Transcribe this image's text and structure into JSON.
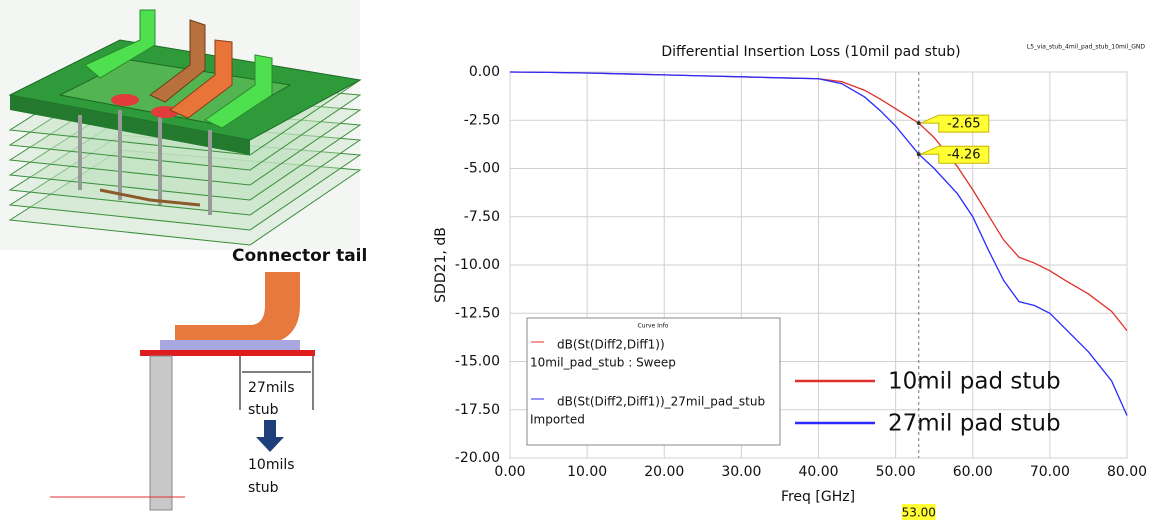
{
  "diagram": {
    "label": "Connector tail",
    "stub_long": [
      "27mils",
      "stub"
    ],
    "stub_short": [
      "10mils",
      "stub"
    ]
  },
  "chart_data": {
    "type": "line",
    "title": "Differential Insertion Loss (10mil pad stub)",
    "subtitle": "L5_via_stub_4mil_pad_stub_10mil_GND",
    "x_label": "Freq [GHz]",
    "y_label": "SDD21, dB",
    "x": [
      0,
      5,
      10,
      15,
      20,
      25,
      30,
      35,
      40,
      43,
      46,
      48,
      50,
      53,
      55,
      58,
      60,
      62,
      64,
      66,
      68,
      70,
      72,
      75,
      78,
      80
    ],
    "series": [
      {
        "name": "dB(St(Diff2,Diff1))",
        "detail": "10mil_pad_stub : Sweep",
        "color": "#e0302a",
        "values": [
          0,
          -0.02,
          -0.05,
          -0.1,
          -0.15,
          -0.2,
          -0.25,
          -0.3,
          -0.35,
          -0.5,
          -0.95,
          -1.4,
          -1.9,
          -2.65,
          -3.4,
          -4.9,
          -6.1,
          -7.4,
          -8.7,
          -9.6,
          -9.9,
          -10.3,
          -10.8,
          -11.5,
          -12.4,
          -13.4
        ]
      },
      {
        "name": "dB(St(Diff2,Diff1))_27mil_pad_stub",
        "detail": "Imported",
        "color": "#2b2bff",
        "values": [
          0,
          -0.02,
          -0.05,
          -0.1,
          -0.15,
          -0.2,
          -0.25,
          -0.3,
          -0.35,
          -0.6,
          -1.3,
          -2.0,
          -2.8,
          -4.26,
          -5.0,
          -6.3,
          -7.5,
          -9.2,
          -10.8,
          -11.9,
          -12.1,
          -12.5,
          -13.3,
          -14.5,
          -16.0,
          -17.8
        ]
      }
    ],
    "legend_title": "Curve Info",
    "annotations": [
      "10mil pad stub",
      "27mil pad stub"
    ],
    "marker": {
      "x": {
        "value": 53,
        "label": "53.00"
      },
      "values": [
        -2.65,
        -4.26
      ]
    },
    "xlim": [
      0,
      80
    ],
    "xticks": [
      {
        "value": 0,
        "label": "0.00"
      },
      {
        "value": 10,
        "label": "10.00"
      },
      {
        "value": 20,
        "label": "20.00"
      },
      {
        "value": 30,
        "label": "30.00"
      },
      {
        "value": 40,
        "label": "40.00"
      },
      {
        "value": 50,
        "label": "50.00"
      },
      {
        "value": 60,
        "label": "60.00"
      },
      {
        "value": 70,
        "label": "70.00"
      },
      {
        "value": 80,
        "label": "80.00"
      }
    ],
    "ylim": [
      -20,
      0
    ],
    "yticks": [
      {
        "value": 0,
        "label": "0.00"
      },
      {
        "value": -2.5,
        "label": "-2.50"
      },
      {
        "value": -5,
        "label": "-5.00"
      },
      {
        "value": -7.5,
        "label": "-7.50"
      },
      {
        "value": -10,
        "label": "-10.00"
      },
      {
        "value": -12.5,
        "label": "-12.50"
      },
      {
        "value": -15,
        "label": "-15.00"
      },
      {
        "value": -17.5,
        "label": "-17.50"
      },
      {
        "value": -20,
        "label": "-20.00"
      }
    ],
    "grid": true
  }
}
